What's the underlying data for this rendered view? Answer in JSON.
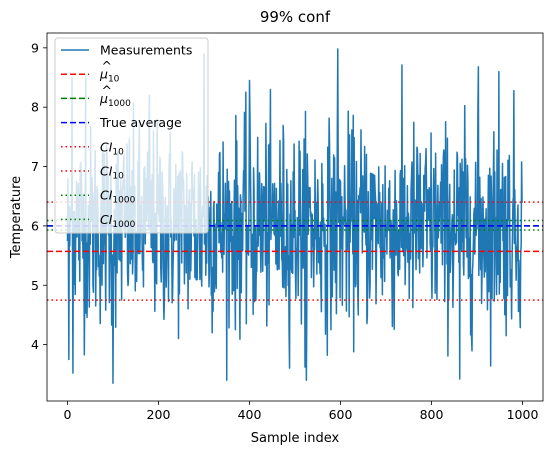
{
  "chart_data": {
    "type": "line",
    "title": "99% conf",
    "xlabel": "Sample index",
    "ylabel": "Temperature",
    "xlim": [
      -45,
      1045
    ],
    "ylim": [
      3.05,
      9.25
    ],
    "xticks": [
      0,
      200,
      400,
      600,
      800,
      1000
    ],
    "yticks": [
      4,
      5,
      6,
      7,
      8,
      9
    ],
    "grid": false,
    "legend_position": "top-left",
    "measurements": {
      "name": "Measurements",
      "color": "#1f77b4",
      "n": 1000,
      "mean": 6.0,
      "sd": 0.9,
      "min": 3.35,
      "max": 8.98,
      "extremes": [
        {
          "x": 3,
          "y": 3.75
        },
        {
          "x": 10,
          "y": 8.5
        },
        {
          "x": 12,
          "y": 3.52
        },
        {
          "x": 40,
          "y": 8.5
        },
        {
          "x": 100,
          "y": 3.35
        },
        {
          "x": 180,
          "y": 8.2
        },
        {
          "x": 300,
          "y": 8.9
        },
        {
          "x": 400,
          "y": 8.45
        },
        {
          "x": 522,
          "y": 3.62
        },
        {
          "x": 594,
          "y": 8.98
        },
        {
          "x": 862,
          "y": 3.42
        },
        {
          "x": 903,
          "y": 8.68
        },
        {
          "x": 948,
          "y": 8.6
        },
        {
          "x": 981,
          "y": 8.28
        }
      ]
    },
    "reference_lines": [
      {
        "name": "μ̂10",
        "y": 5.57,
        "color": "#ff0000",
        "style": "dashed"
      },
      {
        "name": "μ̂1000",
        "y": 6.0,
        "color": "#008000",
        "style": "dashed"
      },
      {
        "name": "True average",
        "y": 6.0,
        "color": "#0000ff",
        "style": "dashed"
      },
      {
        "name": "CI10",
        "y": 4.75,
        "color": "#ff0000",
        "style": "dotted"
      },
      {
        "name": "CI10",
        "y": 6.4,
        "color": "#ff0000",
        "style": "dotted"
      },
      {
        "name": "CI1000",
        "y": 5.93,
        "color": "#008000",
        "style": "dotted"
      },
      {
        "name": "CI1000",
        "y": 6.09,
        "color": "#008000",
        "style": "dotted"
      }
    ]
  },
  "legend": [
    {
      "base": "Measurements",
      "sub": "",
      "hat": false,
      "italic": false,
      "color": "#1f77b4",
      "style": "solid"
    },
    {
      "base": "μ",
      "sub": "10",
      "hat": true,
      "italic": true,
      "color": "#ff0000",
      "style": "dashed"
    },
    {
      "base": "μ",
      "sub": "1000",
      "hat": true,
      "italic": true,
      "color": "#008000",
      "style": "dashed"
    },
    {
      "base": "True average",
      "sub": "",
      "hat": false,
      "italic": false,
      "color": "#0000ff",
      "style": "dashed"
    },
    {
      "base": "CI",
      "sub": "10",
      "hat": false,
      "italic": true,
      "color": "#ff0000",
      "style": "dotted"
    },
    {
      "base": "CI",
      "sub": "10",
      "hat": false,
      "italic": true,
      "color": "#ff0000",
      "style": "dotted"
    },
    {
      "base": "CI",
      "sub": "1000",
      "hat": false,
      "italic": true,
      "color": "#008000",
      "style": "dotted"
    },
    {
      "base": "CI",
      "sub": "1000",
      "hat": false,
      "italic": true,
      "color": "#008000",
      "style": "dotted"
    }
  ]
}
